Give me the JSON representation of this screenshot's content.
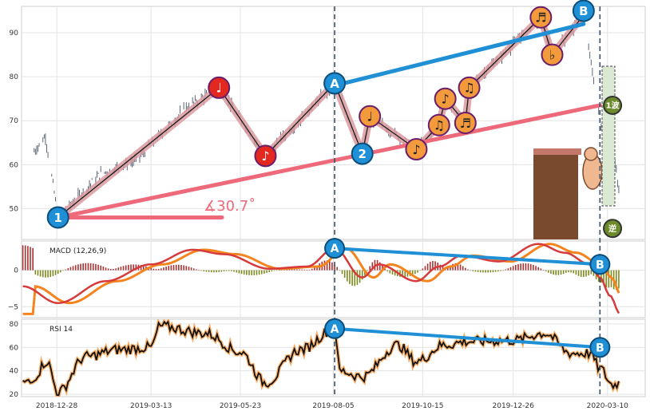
{
  "chart_data": [
    {
      "type": "candlestick",
      "panel": "price",
      "ylim": [
        43,
        96
      ],
      "yticks": [
        50,
        60,
        70,
        80,
        90
      ],
      "ytick_labels": [
        "50",
        "60",
        "70",
        "80",
        "90"
      ],
      "angle_label": "∡30.7˚",
      "pivots": [
        {
          "label": "1",
          "date": "2018-12-29",
          "value": 48,
          "color": "#1f8fd6",
          "text_color": "#ffffff"
        },
        {
          "label": "♩",
          "date": "2019-05-06",
          "value": 77.5,
          "color": "#e3281f",
          "text_color": "#ffffff"
        },
        {
          "label": "♪",
          "date": "2019-06-12",
          "value": 62,
          "color": "#e3281f",
          "text_color": "#ffffff"
        },
        {
          "label": "A",
          "date": "2019-08-06",
          "value": 78.5,
          "color": "#1f8fd6",
          "text_color": "#ffffff"
        },
        {
          "label": "♩",
          "date": "2019-09-03",
          "value": 71,
          "color": "#f39a3c",
          "text_color": "#222222"
        },
        {
          "label": "2",
          "date": "2019-08-28",
          "value": 62.5,
          "color": "#1f8fd6",
          "text_color": "#ffffff"
        },
        {
          "label": "♪",
          "date": "2019-10-10",
          "value": 63.5,
          "color": "#f39a3c",
          "text_color": "#222222"
        },
        {
          "label": "♫",
          "date": "2019-10-28",
          "value": 69,
          "color": "#f39a3c",
          "text_color": "#222222"
        },
        {
          "label": "♪",
          "date": "2019-11-02",
          "value": 75,
          "color": "#f39a3c",
          "text_color": "#222222"
        },
        {
          "label": "♬",
          "date": "2019-11-18",
          "value": 69.5,
          "color": "#f39a3c",
          "text_color": "#222222"
        },
        {
          "label": "♫",
          "date": "2019-11-21",
          "value": 77.5,
          "color": "#f39a3c",
          "text_color": "#222222"
        },
        {
          "label": "♬",
          "date": "2020-01-17",
          "value": 93.5,
          "color": "#f39a3c",
          "text_color": "#222222"
        },
        {
          "label": "♭",
          "date": "2020-01-26",
          "value": 85,
          "color": "#f39a3c",
          "text_color": "#222222"
        },
        {
          "label": "B",
          "date": "2020-02-20",
          "value": 95,
          "color": "#1f8fd6",
          "text_color": "#ffffff"
        }
      ],
      "support_line": {
        "start": [
          "2018-12-29",
          48
        ],
        "end": [
          "2020-03-04",
          73.5
        ]
      },
      "resistance_line": {
        "start": [
          "2019-08-06",
          78
        ],
        "end": [
          "2020-02-20",
          92
        ]
      },
      "markers": [
        {
          "label": "1波",
          "date": "2020-03-14",
          "value": 73.5,
          "color": "#6b8a2a",
          "text_color": "#ffffff"
        },
        {
          "label": "逆",
          "date": "2020-03-14",
          "value": 45.5,
          "color": "#6b8a2a",
          "text_color": "#ffffff"
        }
      ]
    },
    {
      "type": "line",
      "panel": "macd",
      "label": "MACD (12,26,9)",
      "ylim": [
        -6.5,
        4
      ],
      "yticks": [
        0,
        -5
      ],
      "ytick_labels": [
        "0",
        "−5"
      ],
      "divergence": {
        "start": [
          "2019-08-06",
          3
        ],
        "end": [
          "2020-03-04",
          0.8
        ],
        "labels": [
          "A",
          "B"
        ]
      }
    },
    {
      "type": "line",
      "panel": "rsi",
      "label": "RSI 14",
      "ylim": [
        18,
        84
      ],
      "yticks": [
        20,
        40,
        60,
        80
      ],
      "ytick_labels": [
        "20",
        "40",
        "60",
        "80"
      ],
      "divergence": {
        "start": [
          "2019-08-06",
          76
        ],
        "end": [
          "2020-03-04",
          60
        ],
        "labels": [
          "A",
          "B"
        ]
      }
    }
  ],
  "x_axis": {
    "range": [
      "2018-11-30",
      "2020-04-09"
    ],
    "ticks": [
      "2018-12-28",
      "2019-03-13",
      "2019-05-23",
      "2019-08-05",
      "2019-10-15",
      "2019-12-26",
      "2020-03-10"
    ],
    "vlines": [
      "2019-08-06",
      "2020-03-04"
    ]
  },
  "colors": {
    "blue": "#1f8fd6",
    "red": "#e3281f",
    "orange": "#f39a3c",
    "pink_line": "#ee6a7b",
    "macd_line": "#d63a3a",
    "signal_line": "#f5841f",
    "hist_pos": "#a83232",
    "hist_neg": "#7e8a1e"
  }
}
